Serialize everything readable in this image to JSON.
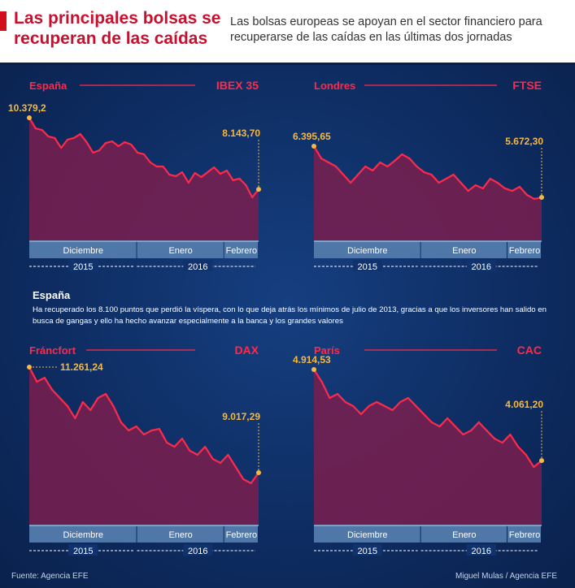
{
  "header": {
    "title": "Las principales bolsas se recuperan de las caídas",
    "subtitle": "Las bolsas europeas se apoyan en el sector financiero para recuperarse de las caídas en las últimas dos jornadas",
    "accent": "#c8102e"
  },
  "note": {
    "heading": "España",
    "text": "Ha recuperado los 8.100 puntos que perdió la víspera, con lo que deja atrás los mínimos de julio de 2013, gracias a que los inversores han salido en busca de gangas y ello ha hecho avanzar especialmente a la banca y los grandes valores"
  },
  "footer": {
    "source": "Fuente: Agencia EFE",
    "credit": "Miguel Mulas / Agencia EFE"
  },
  "colors": {
    "line": "#ff2a4a",
    "fill": "#7a1f4f",
    "marker": "#f4b942",
    "month_bar": "#4f77a8"
  },
  "chart_data": [
    {
      "type": "area",
      "region": "España",
      "index": "IBEX 35",
      "start_label": "10.379,2",
      "end_label": "8.143,70",
      "ylim": [
        6546,
        10887
      ],
      "values": [
        10379,
        10049,
        9998,
        9795,
        9745,
        9440,
        9694,
        9745,
        9871,
        9618,
        9288,
        9364,
        9592,
        9643,
        9491,
        9618,
        9541,
        9288,
        9237,
        8983,
        8856,
        8856,
        8602,
        8552,
        8678,
        8349,
        8653,
        8526,
        8678,
        8831,
        8628,
        8729,
        8425,
        8476,
        8272,
        7892,
        8143
      ],
      "months": [
        {
          "label": "Diciembre",
          "share": 0.47
        },
        {
          "label": "Enero",
          "share": 0.38
        },
        {
          "label": "Febrero",
          "share": 0.15
        }
      ],
      "years": [
        {
          "label": "2015",
          "share": 0.47
        },
        {
          "label": "2016",
          "share": 0.53
        }
      ]
    },
    {
      "type": "area",
      "region": "Londres",
      "index": "FTSE",
      "start_label": "6.395,65",
      "end_label": "5.672,30",
      "ylim": [
        5064,
        7027
      ],
      "values": [
        6396,
        6223,
        6166,
        6109,
        5994,
        5879,
        5994,
        6109,
        6051,
        6166,
        6109,
        6189,
        6281,
        6223,
        6109,
        6028,
        5994,
        5879,
        5936,
        5994,
        5879,
        5764,
        5845,
        5799,
        5936,
        5879,
        5799,
        5764,
        5822,
        5707,
        5650,
        5672
      ],
      "months": [
        {
          "label": "Diciembre",
          "share": 0.47
        },
        {
          "label": "Enero",
          "share": 0.38
        },
        {
          "label": "Febrero",
          "share": 0.15
        }
      ],
      "years": [
        {
          "label": "2015",
          "share": 0.47
        },
        {
          "label": "2016",
          "share": 0.53
        }
      ]
    },
    {
      "type": "area",
      "region": "Fráncfort",
      "index": "DAX",
      "start_label": "11.261,24",
      "end_label": "9.017,29",
      "ylim": [
        7911,
        11382
      ],
      "values": [
        11261,
        10950,
        11036,
        10777,
        10605,
        10432,
        10173,
        10518,
        10346,
        10605,
        10691,
        10432,
        10087,
        9914,
        10000,
        9828,
        9914,
        9948,
        9655,
        9568,
        9741,
        9482,
        9396,
        9568,
        9309,
        9223,
        9396,
        9137,
        8878,
        8792,
        9017
      ],
      "months": [
        {
          "label": "Diciembre",
          "share": 0.47
        },
        {
          "label": "Enero",
          "share": 0.38
        },
        {
          "label": "Febrero",
          "share": 0.15
        }
      ],
      "years": [
        {
          "label": "2015",
          "share": 0.47
        },
        {
          "label": "2016",
          "share": 0.53
        }
      ]
    },
    {
      "type": "area",
      "region": "París",
      "index": "CAC",
      "start_label": "4.914,53",
      "end_label": "4.061,20",
      "ylim": [
        3460,
        4991
      ],
      "values": [
        4915,
        4800,
        4648,
        4686,
        4610,
        4572,
        4496,
        4572,
        4610,
        4572,
        4534,
        4610,
        4648,
        4572,
        4496,
        4420,
        4381,
        4458,
        4381,
        4305,
        4343,
        4420,
        4343,
        4267,
        4229,
        4305,
        4191,
        4115,
        4001,
        4061
      ],
      "months": [
        {
          "label": "Diciembre",
          "share": 0.47
        },
        {
          "label": "Enero",
          "share": 0.38
        },
        {
          "label": "Febrero",
          "share": 0.15
        }
      ],
      "years": [
        {
          "label": "2015",
          "share": 0.47
        },
        {
          "label": "2016",
          "share": 0.53
        }
      ]
    }
  ]
}
